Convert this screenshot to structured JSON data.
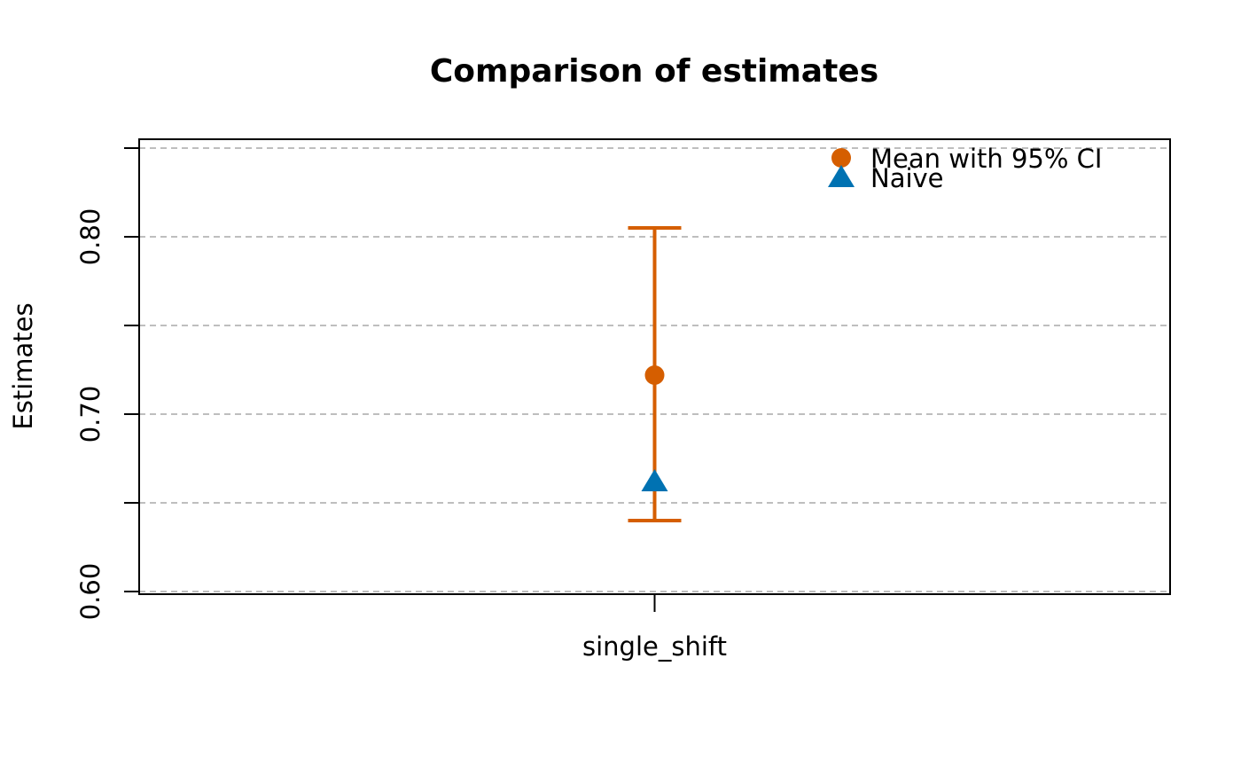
{
  "chart_data": {
    "type": "scatter",
    "title": "Comparison of estimates",
    "xlabel": "",
    "ylabel": "Estimates",
    "categories": [
      "single_shift"
    ],
    "ylim": [
      0.6,
      0.85
    ],
    "y_ticks": [
      0.6,
      0.65,
      0.7,
      0.75,
      0.8,
      0.85
    ],
    "y_tick_labels": [
      "0.60",
      "",
      "0.70",
      "",
      "0.80",
      ""
    ],
    "grid": true,
    "legend_position": "top-right",
    "series": [
      {
        "name": "Mean with 95% CI",
        "marker": "circle",
        "color": "#D55E00",
        "values": [
          0.722
        ],
        "ci_lower": [
          0.64
        ],
        "ci_upper": [
          0.805
        ]
      },
      {
        "name": "Naive",
        "marker": "triangle",
        "color": "#0072B2",
        "values": [
          0.662
        ]
      }
    ]
  }
}
